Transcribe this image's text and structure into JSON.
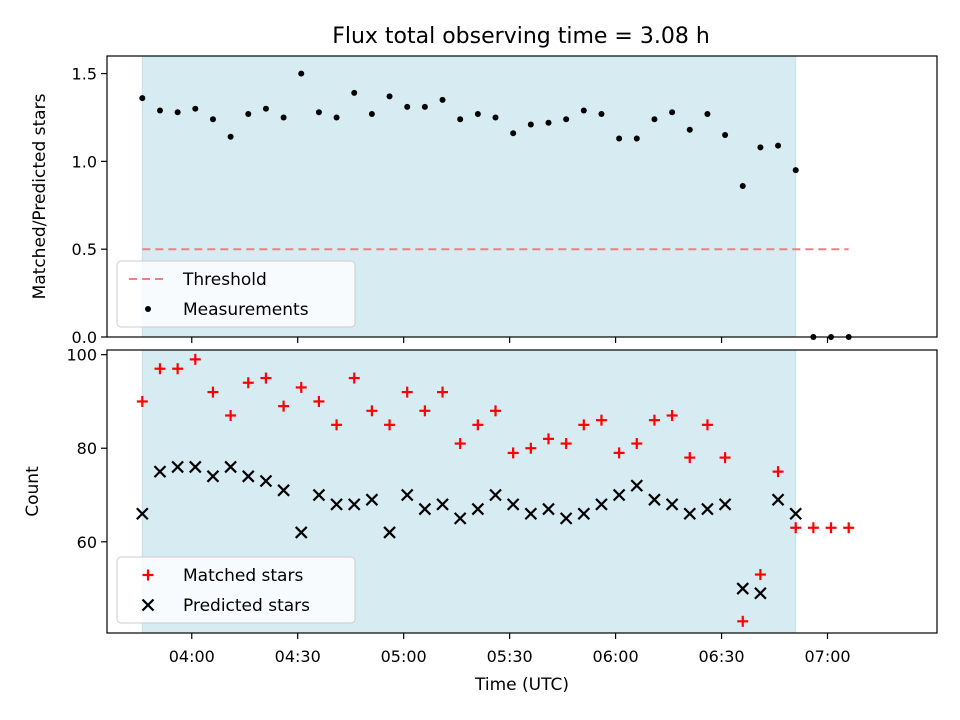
{
  "title": "Flux total observing time = 3.08 h",
  "colors": {
    "shade": "#add8e6",
    "threshold": "#f08080",
    "measurement": "#000000",
    "matched": "#ff0000",
    "predicted": "#000000"
  },
  "chart_data": [
    {
      "type": "scatter",
      "panel": "top",
      "xlabel": "",
      "ylabel": "Matched/Predicted stars",
      "ylim": [
        0,
        1.6
      ],
      "yticks": [
        "0.0",
        "0.5",
        "1.0",
        "1.5"
      ],
      "xticks": [
        "04:00",
        "04:30",
        "05:00",
        "05:30",
        "06:00",
        "06:30",
        "07:00"
      ],
      "xlim": [
        "03:36",
        "07:31"
      ],
      "shaded_region": [
        "03:46",
        "06:51"
      ],
      "threshold": {
        "name": "Threshold",
        "value": 0.5,
        "x_range": [
          "03:46",
          "07:06"
        ]
      },
      "legend": {
        "position": "lower-left",
        "entries": [
          "Threshold",
          "Measurements"
        ]
      },
      "series": [
        {
          "name": "Measurements",
          "x": [
            "03:46",
            "03:51",
            "03:56",
            "04:01",
            "04:06",
            "04:11",
            "04:16",
            "04:21",
            "04:26",
            "04:31",
            "04:36",
            "04:41",
            "04:46",
            "04:51",
            "04:56",
            "05:01",
            "05:06",
            "05:11",
            "05:16",
            "05:21",
            "05:26",
            "05:31",
            "05:36",
            "05:41",
            "05:46",
            "05:51",
            "05:56",
            "06:01",
            "06:06",
            "06:11",
            "06:16",
            "06:21",
            "06:26",
            "06:31",
            "06:36",
            "06:41",
            "06:46",
            "06:51",
            "06:56",
            "07:01",
            "07:06"
          ],
          "y": [
            1.36,
            1.29,
            1.28,
            1.3,
            1.24,
            1.14,
            1.27,
            1.3,
            1.25,
            1.5,
            1.28,
            1.25,
            1.39,
            1.27,
            1.37,
            1.31,
            1.31,
            1.35,
            1.24,
            1.27,
            1.25,
            1.16,
            1.21,
            1.22,
            1.24,
            1.29,
            1.27,
            1.13,
            1.13,
            1.24,
            1.28,
            1.18,
            1.27,
            1.15,
            0.86,
            1.08,
            1.09,
            0.95,
            0.0,
            0.0,
            0.0
          ]
        }
      ]
    },
    {
      "type": "scatter",
      "panel": "bottom",
      "xlabel": "Time (UTC)",
      "ylabel": "Count",
      "ylim": [
        40.5,
        101
      ],
      "yticks": [
        "60",
        "80",
        "100"
      ],
      "xticks": [
        "04:00",
        "04:30",
        "05:00",
        "05:30",
        "06:00",
        "06:30",
        "07:00"
      ],
      "xlim": [
        "03:36",
        "07:31"
      ],
      "shaded_region": [
        "03:46",
        "06:51"
      ],
      "legend": {
        "position": "lower-left",
        "entries": [
          "Matched stars",
          "Predicted stars"
        ]
      },
      "series": [
        {
          "name": "Matched stars",
          "marker": "plus",
          "x": [
            "03:46",
            "03:51",
            "03:56",
            "04:01",
            "04:06",
            "04:11",
            "04:16",
            "04:21",
            "04:26",
            "04:31",
            "04:36",
            "04:41",
            "04:46",
            "04:51",
            "04:56",
            "05:01",
            "05:06",
            "05:11",
            "05:16",
            "05:21",
            "05:26",
            "05:31",
            "05:36",
            "05:41",
            "05:46",
            "05:51",
            "05:56",
            "06:01",
            "06:06",
            "06:11",
            "06:16",
            "06:21",
            "06:26",
            "06:31",
            "06:36",
            "06:41",
            "06:46",
            "06:51",
            "06:56",
            "07:01",
            "07:06"
          ],
          "y": [
            90,
            97,
            97,
            99,
            92,
            87,
            94,
            95,
            89,
            93,
            90,
            85,
            95,
            88,
            85,
            92,
            88,
            92,
            81,
            85,
            88,
            79,
            80,
            82,
            81,
            85,
            86,
            79,
            81,
            86,
            87,
            78,
            85,
            78,
            43,
            53,
            75,
            63,
            63,
            63,
            63
          ]
        },
        {
          "name": "Predicted stars",
          "marker": "x",
          "x": [
            "03:46",
            "03:51",
            "03:56",
            "04:01",
            "04:06",
            "04:11",
            "04:16",
            "04:21",
            "04:26",
            "04:31",
            "04:36",
            "04:41",
            "04:46",
            "04:51",
            "04:56",
            "05:01",
            "05:06",
            "05:11",
            "05:16",
            "05:21",
            "05:26",
            "05:31",
            "05:36",
            "05:41",
            "05:46",
            "05:51",
            "05:56",
            "06:01",
            "06:06",
            "06:11",
            "06:16",
            "06:21",
            "06:26",
            "06:31",
            "06:36",
            "06:41",
            "06:46",
            "06:51"
          ],
          "y": [
            66,
            75,
            76,
            76,
            74,
            76,
            74,
            73,
            71,
            62,
            70,
            68,
            68,
            69,
            62,
            70,
            67,
            68,
            65,
            67,
            70,
            68,
            66,
            67,
            65,
            66,
            68,
            70,
            72,
            69,
            68,
            66,
            67,
            68,
            50,
            49,
            69,
            66
          ]
        }
      ]
    }
  ]
}
